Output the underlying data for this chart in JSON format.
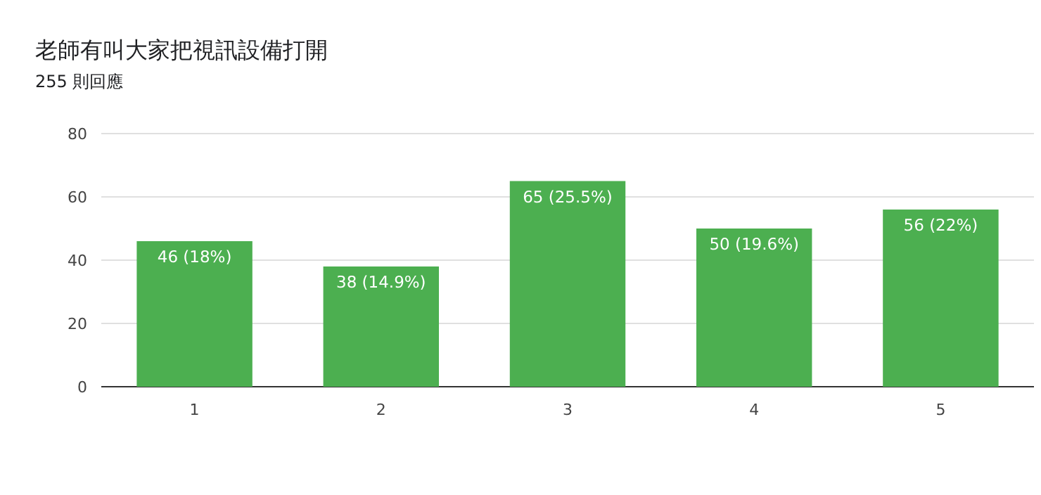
{
  "chart_data": {
    "type": "bar",
    "title": "老師有叫大家把視訊設備打開",
    "subtitle": "255 則回應",
    "categories": [
      "1",
      "2",
      "3",
      "4",
      "5"
    ],
    "values": [
      46,
      38,
      65,
      50,
      56
    ],
    "value_labels": [
      "46 (18%)",
      "38 (14.9%)",
      "65 (25.5%)",
      "50 (19.6%)",
      "56 (22%)"
    ],
    "color": "#4caf50",
    "ylim": [
      0,
      80
    ],
    "yticks": [
      0,
      20,
      40,
      60,
      80
    ],
    "grid": "y"
  }
}
